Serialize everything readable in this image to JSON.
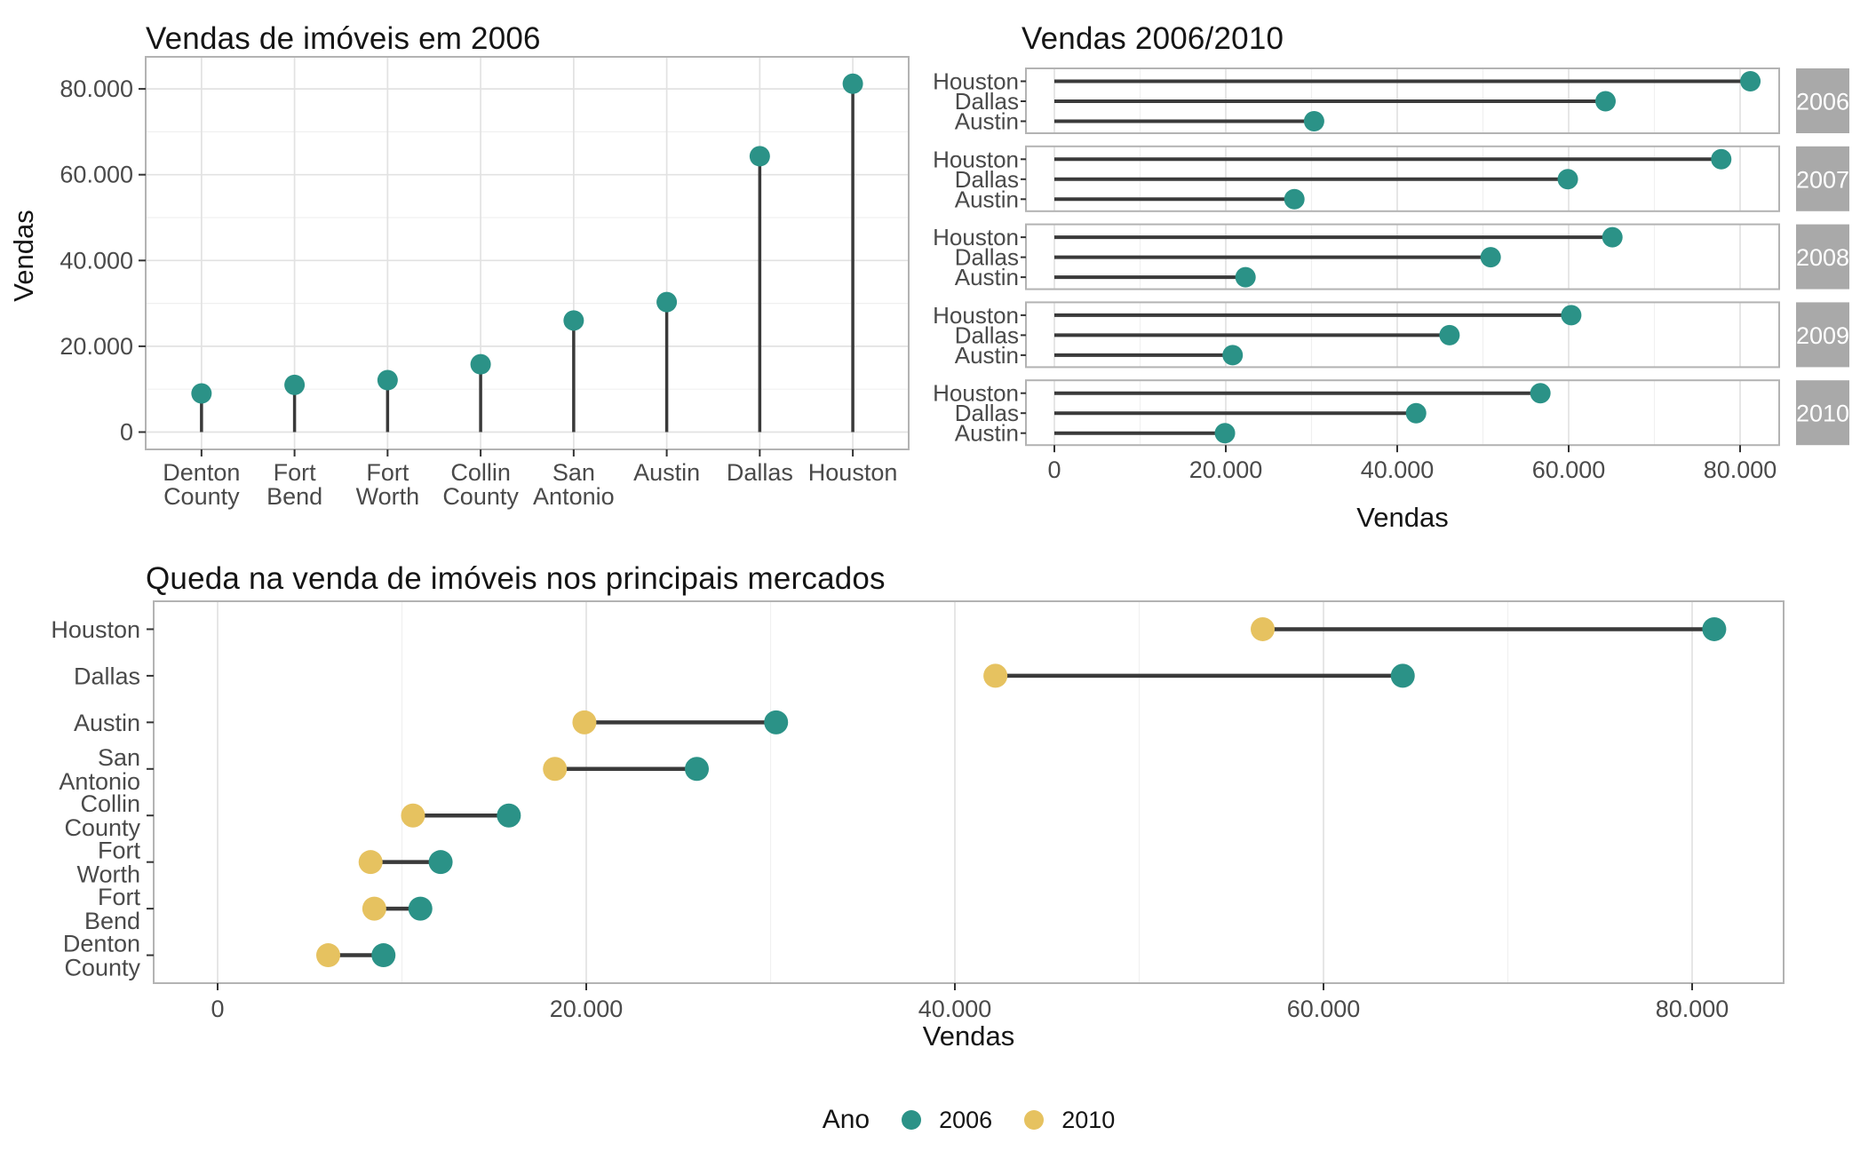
{
  "page": {
    "background": "#ffffff"
  },
  "colors": {
    "series_2006": "#2b9287",
    "series_2010": "#e6c260",
    "stem": "#3a3a3a",
    "grid_major": "#e2e2e2",
    "grid_minor": "#f0f0f0",
    "panel_border": "#b3b3b3",
    "tick_mark": "#333333",
    "axis_text": "#4a4a4a",
    "title_text": "#151515",
    "strip_bg": "#a9a9a9",
    "strip_text": "#ffffff"
  },
  "legend": {
    "title": "Ano"
  },
  "chart_data": [
    {
      "id": "vendas-2006",
      "type": "lollipop",
      "orientation": "vertical",
      "title": "Vendas de imóveis em 2006",
      "xlabel": "",
      "ylabel": "Vendas",
      "categories": [
        "Denton County",
        "Fort Bend",
        "Fort Worth",
        "Collin County",
        "San Antonio",
        "Austin",
        "Dallas",
        "Houston"
      ],
      "values": [
        9000,
        11000,
        12100,
        15800,
        26000,
        30300,
        64300,
        81200
      ],
      "ylim": [
        0,
        87500
      ],
      "yticks": [
        0,
        20000,
        40000,
        60000,
        80000
      ],
      "ytick_labels": [
        "0",
        "20.000",
        "40.000",
        "60.000",
        "80.000"
      ],
      "grid": true,
      "legend_position": "none"
    },
    {
      "id": "vendas-2006-2010",
      "type": "lollipop",
      "orientation": "horizontal",
      "title": "Vendas 2006/2010",
      "xlabel": "Vendas",
      "ylabel": "",
      "categories": [
        "Houston",
        "Dallas",
        "Austin"
      ],
      "facets": [
        {
          "label": "2006",
          "values": [
            81200,
            64300,
            30300
          ]
        },
        {
          "label": "2007",
          "values": [
            77800,
            59900,
            28000
          ]
        },
        {
          "label": "2008",
          "values": [
            65100,
            50900,
            22300
          ]
        },
        {
          "label": "2009",
          "values": [
            60300,
            46100,
            20800
          ]
        },
        {
          "label": "2010",
          "values": [
            56700,
            42200,
            19900
          ]
        }
      ],
      "xlim": [
        0,
        84500
      ],
      "xticks": [
        0,
        20000,
        40000,
        60000,
        80000
      ],
      "xtick_labels": [
        "0",
        "20.000",
        "40.000",
        "60.000",
        "80.000"
      ],
      "grid": true,
      "legend_position": "none"
    },
    {
      "id": "queda-principais-mercados",
      "type": "dumbbell",
      "orientation": "horizontal",
      "title": "Queda na venda de imóveis nos principais mercados",
      "xlabel": "Vendas",
      "ylabel": "",
      "legend_title": "Ano",
      "legend_position": "bottom",
      "categories": [
        "Houston",
        "Dallas",
        "Austin",
        "San Antonio",
        "Collin County",
        "Fort Worth",
        "Fort Bend",
        "Denton County"
      ],
      "series": [
        {
          "name": "2006",
          "color": "#2b9287",
          "values": [
            81200,
            64300,
            30300,
            26000,
            15800,
            12100,
            11000,
            9000
          ]
        },
        {
          "name": "2010",
          "color": "#e6c260",
          "values": [
            56700,
            42200,
            19900,
            18300,
            10600,
            8300,
            8500,
            6000
          ]
        }
      ],
      "xlim": [
        0,
        85000
      ],
      "xticks": [
        0,
        20000,
        40000,
        60000,
        80000
      ],
      "xtick_labels": [
        "0",
        "20.000",
        "40.000",
        "60.000",
        "80.000"
      ],
      "grid": true
    }
  ]
}
